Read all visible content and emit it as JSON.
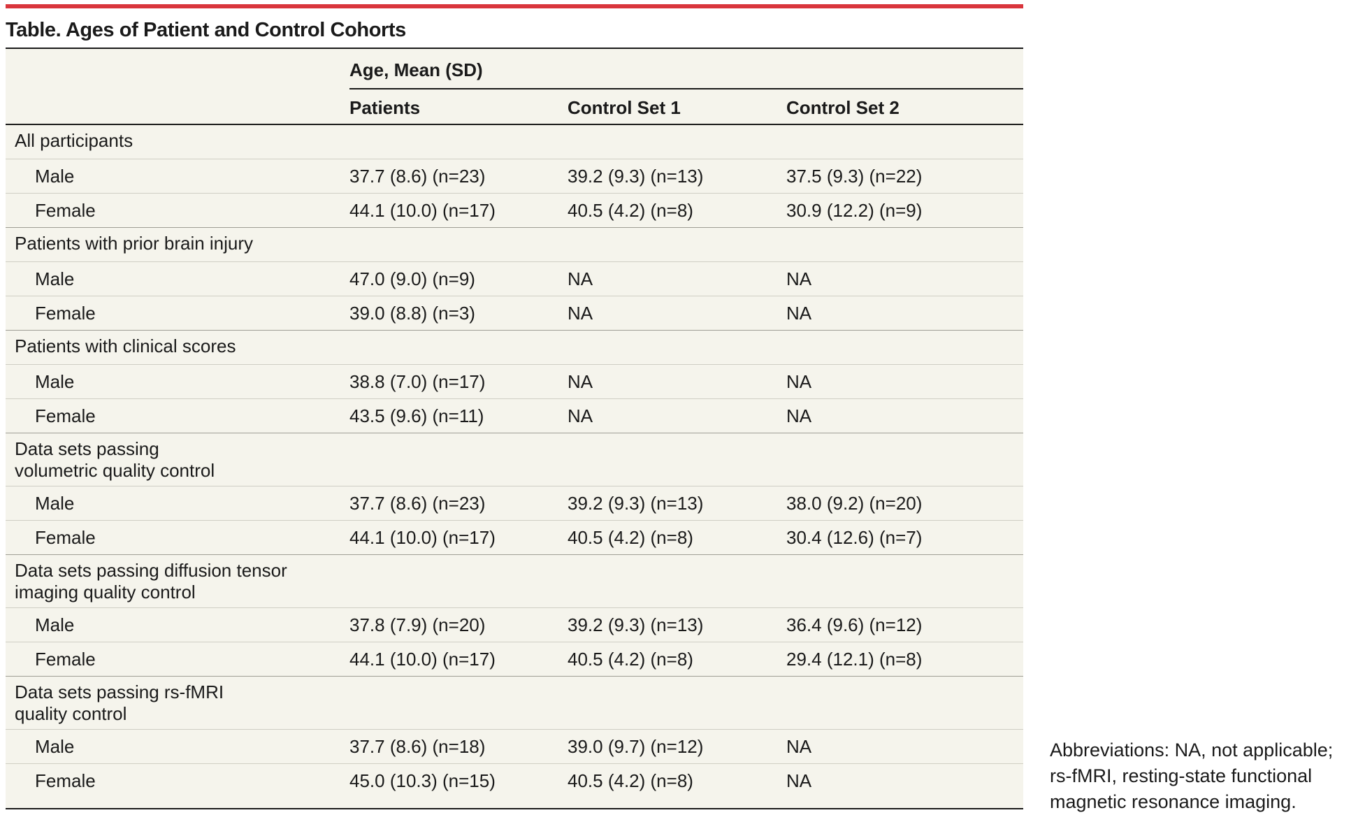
{
  "title": "Table. Ages of Patient and Control Cohorts",
  "header": {
    "group_label": "Age, Mean (SD)",
    "columns": [
      "Patients",
      "Control Set 1",
      "Control Set 2"
    ]
  },
  "sections": [
    {
      "label": "All participants",
      "rows": [
        {
          "label": "Male",
          "values": [
            "37.7 (8.6) (n=23)",
            "39.2 (9.3) (n=13)",
            "37.5 (9.3) (n=22)"
          ]
        },
        {
          "label": "Female",
          "values": [
            "44.1 (10.0) (n=17)",
            "40.5 (4.2) (n=8)",
            "30.9 (12.2) (n=9)"
          ]
        }
      ]
    },
    {
      "label": "Patients with prior brain injury",
      "rows": [
        {
          "label": "Male",
          "values": [
            "47.0 (9.0) (n=9)",
            "NA",
            "NA"
          ]
        },
        {
          "label": "Female",
          "values": [
            "39.0 (8.8) (n=3)",
            "NA",
            "NA"
          ]
        }
      ]
    },
    {
      "label": "Patients with clinical scores",
      "rows": [
        {
          "label": "Male",
          "values": [
            "38.8 (7.0) (n=17)",
            "NA",
            "NA"
          ]
        },
        {
          "label": "Female",
          "values": [
            "43.5 (9.6) (n=11)",
            "NA",
            "NA"
          ]
        }
      ]
    },
    {
      "label": "Data sets passing volumetric quality control",
      "rows": [
        {
          "label": "Male",
          "values": [
            "37.7 (8.6) (n=23)",
            "39.2 (9.3) (n=13)",
            "38.0 (9.2) (n=20)"
          ]
        },
        {
          "label": "Female",
          "values": [
            "44.1 (10.0) (n=17)",
            "40.5 (4.2) (n=8)",
            "30.4 (12.6) (n=7)"
          ]
        }
      ]
    },
    {
      "label": "Data sets passing diffusion tensor imaging quality control",
      "rows": [
        {
          "label": "Male",
          "values": [
            "37.8 (7.9) (n=20)",
            "39.2 (9.3) (n=13)",
            "36.4 (9.6) (n=12)"
          ]
        },
        {
          "label": "Female",
          "values": [
            "44.1 (10.0) (n=17)",
            "40.5 (4.2) (n=8)",
            "29.4 (12.1) (n=8)"
          ]
        }
      ]
    },
    {
      "label": "Data sets passing rs-fMRI quality control",
      "rows": [
        {
          "label": "Male",
          "values": [
            "37.7 (8.6) (n=18)",
            "39.0 (9.7) (n=12)",
            "NA"
          ]
        },
        {
          "label": "Female",
          "values": [
            "45.0 (10.3) (n=15)",
            "40.5 (4.2) (n=8)",
            "NA"
          ]
        }
      ]
    }
  ],
  "footnote": "Abbreviations: NA, not applicable; rs-fMRI, resting-state functional magnetic resonance imaging.",
  "colors": {
    "accent_rule": "#d9353c",
    "table_background": "#f5f4ec"
  }
}
